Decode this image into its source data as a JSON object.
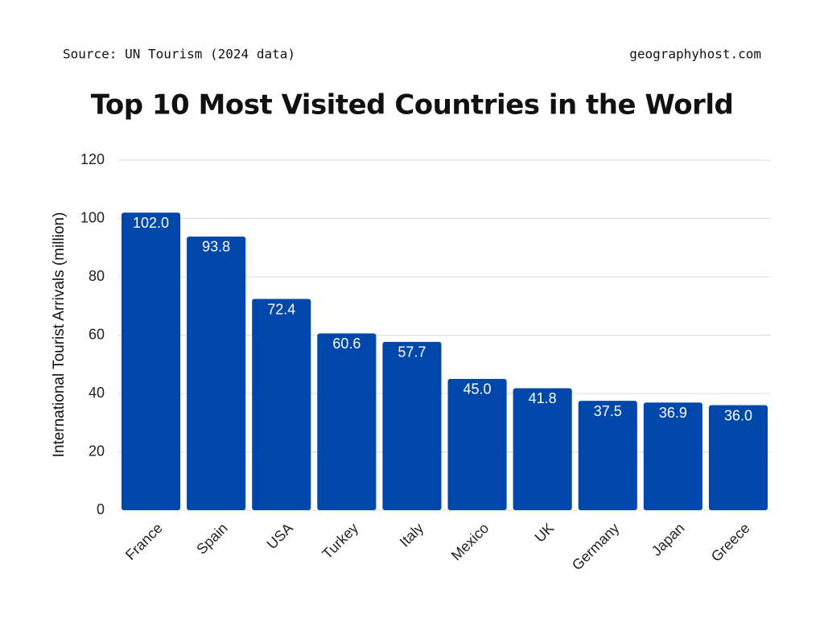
{
  "chart_data": {
    "type": "bar",
    "source": "Source: UN Tourism (2024 data)",
    "credit": "geographyhost.com",
    "title": "Top 10 Most Visited Countries in the World",
    "y_label": "International Tourist Arrivals (million)",
    "categories": [
      "France",
      "Spain",
      "USA",
      "Turkey",
      "Italy",
      "Mexico",
      "UK",
      "Germany",
      "Japan",
      "Greece"
    ],
    "values": [
      102,
      93.8,
      72.4,
      60.6,
      57.7,
      45,
      41.8,
      37.5,
      36.9,
      36
    ],
    "value_labels": [
      "102.0",
      "93.8",
      "72.4",
      "60.6",
      "57.7",
      "45.0",
      "41.8",
      "37.5",
      "36.9",
      "36.0"
    ],
    "color": "#0047ab",
    "ylim": [
      0,
      120
    ],
    "yticks": [
      0,
      20,
      40,
      60,
      80,
      100,
      120
    ],
    "grid": true
  }
}
